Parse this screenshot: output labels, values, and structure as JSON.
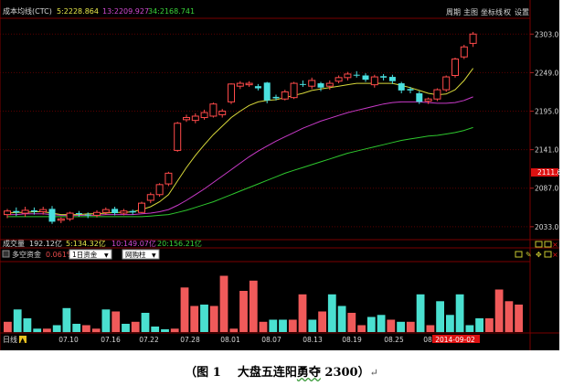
{
  "header": {
    "indicator_name": "成本均线(CTC)",
    "ma1": "5:2228.864",
    "ma2": "13:2209.927",
    "ma3": "34:2168.741",
    "buttons": [
      "周期",
      "主图",
      "坐标线",
      "权",
      "设置"
    ]
  },
  "volume_header": {
    "title": "成交量",
    "total": "192.12亿",
    "ma5": "5:134.32亿",
    "ma10": "10:149.07亿",
    "ma20": "20:156.21亿"
  },
  "flow_header": {
    "title": "多空资金",
    "pct": "0.061%",
    "select1": "1日资金",
    "select2": "网购柱"
  },
  "footer": {
    "period": "日线"
  },
  "caption": {
    "left": "（图 1",
    "main": "大盘五连阳",
    "sq": "勇夺",
    "tail": "2300）",
    "mark": "↵"
  },
  "chart_data": {
    "type": "candlestick",
    "y_ticks": [
      "2303.0",
      "2249.0",
      "2195.0",
      "2141.0",
      "2087.0",
      "2033.0"
    ],
    "ylim": [
      2020,
      2320
    ],
    "current_price": "2111.6",
    "x_ticks": [
      "07.10",
      "07.16",
      "07.22",
      "07.28",
      "08.01",
      "08.07",
      "08.13",
      "08.19",
      "08.25",
      "08",
      "2014-09-02"
    ],
    "candles": [
      [
        2050,
        2055,
        2045,
        2058
      ],
      [
        2055,
        2053,
        2048,
        2060
      ],
      [
        2052,
        2056,
        2047,
        2061
      ],
      [
        2056,
        2054,
        2050,
        2060
      ],
      [
        2054,
        2057,
        2050,
        2061
      ],
      [
        2058,
        2040,
        2037,
        2062
      ],
      [
        2042,
        2044,
        2038,
        2046
      ],
      [
        2044,
        2052,
        2041,
        2054
      ],
      [
        2052,
        2051,
        2047,
        2055
      ],
      [
        2050,
        2049,
        2045,
        2053
      ],
      [
        2049,
        2053,
        2046,
        2056
      ],
      [
        2053,
        2057,
        2050,
        2060
      ],
      [
        2058,
        2052,
        2049,
        2061
      ],
      [
        2052,
        2055,
        2049,
        2058
      ],
      [
        2055,
        2053,
        2050,
        2057
      ],
      [
        2053,
        2066,
        2052,
        2068
      ],
      [
        2070,
        2078,
        2066,
        2081
      ],
      [
        2078,
        2092,
        2075,
        2094
      ],
      [
        2093,
        2108,
        2090,
        2110
      ],
      [
        2140,
        2178,
        2138,
        2180
      ],
      [
        2183,
        2186,
        2180,
        2190
      ],
      [
        2182,
        2188,
        2178,
        2192
      ],
      [
        2186,
        2193,
        2183,
        2197
      ],
      [
        2188,
        2205,
        2186,
        2207
      ],
      [
        2190,
        2195,
        2186,
        2198
      ],
      [
        2208,
        2233,
        2205,
        2234
      ],
      [
        2230,
        2234,
        2226,
        2237
      ],
      [
        2232,
        2234,
        2229,
        2237
      ],
      [
        2230,
        2227,
        2224,
        2233
      ],
      [
        2235,
        2210,
        2206,
        2236
      ],
      [
        2215,
        2213,
        2210,
        2218
      ],
      [
        2212,
        2222,
        2210,
        2225
      ],
      [
        2214,
        2234,
        2212,
        2236
      ],
      [
        2233,
        2232,
        2229,
        2238
      ],
      [
        2230,
        2238,
        2226,
        2242
      ],
      [
        2234,
        2228,
        2223,
        2236
      ],
      [
        2230,
        2234,
        2225,
        2238
      ],
      [
        2237,
        2242,
        2234,
        2245
      ],
      [
        2242,
        2247,
        2238,
        2250
      ],
      [
        2246,
        2245,
        2242,
        2251
      ],
      [
        2245,
        2239,
        2236,
        2248
      ],
      [
        2232,
        2243,
        2228,
        2246
      ],
      [
        2244,
        2242,
        2238,
        2247
      ],
      [
        2243,
        2237,
        2233,
        2246
      ],
      [
        2234,
        2224,
        2220,
        2236
      ],
      [
        2226,
        2224,
        2220,
        2229
      ],
      [
        2220,
        2208,
        2205,
        2223
      ],
      [
        2209,
        2212,
        2205,
        2214
      ],
      [
        2212,
        2225,
        2209,
        2227
      ],
      [
        2225,
        2243,
        2222,
        2245
      ],
      [
        2245,
        2268,
        2242,
        2270
      ],
      [
        2271,
        2285,
        2268,
        2288
      ],
      [
        2290,
        2303,
        2285,
        2306
      ]
    ],
    "ma_ctc5": [
      2052,
      2053,
      2053,
      2054,
      2054,
      2052,
      2050,
      2050,
      2050,
      2051,
      2051,
      2052,
      2053,
      2053,
      2054,
      2057,
      2061,
      2068,
      2078,
      2097,
      2116,
      2133,
      2148,
      2162,
      2174,
      2186,
      2195,
      2203,
      2208,
      2210,
      2211,
      2214,
      2217,
      2220,
      2224,
      2226,
      2228,
      2230,
      2232,
      2234,
      2234,
      2234,
      2234,
      2234,
      2231,
      2228,
      2224,
      2220,
      2218,
      2219,
      2225,
      2238,
      2255
    ],
    "ma_ctc13": [
      2050,
      2050,
      2051,
      2051,
      2051,
      2050,
      2049,
      2049,
      2049,
      2049,
      2049,
      2050,
      2050,
      2050,
      2050,
      2051,
      2052,
      2054,
      2057,
      2063,
      2070,
      2078,
      2086,
      2095,
      2104,
      2113,
      2122,
      2131,
      2139,
      2146,
      2153,
      2159,
      2165,
      2171,
      2176,
      2181,
      2185,
      2189,
      2193,
      2196,
      2199,
      2202,
      2205,
      2207,
      2208,
      2208,
      2208,
      2207,
      2206,
      2206,
      2207,
      2210,
      2215
    ],
    "ma_ctc34": [
      2047,
      2047,
      2047,
      2047,
      2047,
      2047,
      2047,
      2047,
      2047,
      2047,
      2047,
      2047,
      2047,
      2047,
      2047,
      2047,
      2048,
      2049,
      2050,
      2053,
      2056,
      2060,
      2064,
      2068,
      2073,
      2078,
      2083,
      2088,
      2093,
      2098,
      2103,
      2108,
      2112,
      2116,
      2120,
      2124,
      2128,
      2132,
      2136,
      2139,
      2142,
      2145,
      2148,
      2151,
      2154,
      2156,
      2158,
      2160,
      2161,
      2163,
      2165,
      2168,
      2172
    ],
    "flow_bars": [
      [
        "r",
        0.15
      ],
      [
        "c",
        0.33
      ],
      [
        "c",
        0.2
      ],
      [
        "c",
        0.05
      ],
      [
        "r",
        0.05
      ],
      [
        "c",
        0.1
      ],
      [
        "c",
        0.35
      ],
      [
        "c",
        0.12
      ],
      [
        "r",
        0.1
      ],
      [
        "r",
        0.05
      ],
      [
        "c",
        0.33
      ],
      [
        "r",
        0.3
      ],
      [
        "c",
        0.12
      ],
      [
        "r",
        0.15
      ],
      [
        "c",
        0.28
      ],
      [
        "c",
        0.08
      ],
      [
        "c",
        0.04
      ],
      [
        "r",
        0.05
      ],
      [
        "r",
        0.65
      ],
      [
        "r",
        0.38
      ],
      [
        "c",
        0.4
      ],
      [
        "r",
        0.38
      ],
      [
        "r",
        0.82
      ],
      [
        "r",
        0.05
      ],
      [
        "r",
        0.6
      ],
      [
        "r",
        0.75
      ],
      [
        "r",
        0.15
      ],
      [
        "c",
        0.18
      ],
      [
        "c",
        0.18
      ],
      [
        "r",
        0.18
      ],
      [
        "r",
        0.55
      ],
      [
        "c",
        0.18
      ],
      [
        "r",
        0.3
      ],
      [
        "c",
        0.55
      ],
      [
        "c",
        0.38
      ],
      [
        "r",
        0.28
      ],
      [
        "r",
        0.1
      ],
      [
        "c",
        0.22
      ],
      [
        "c",
        0.25
      ],
      [
        "r",
        0.18
      ],
      [
        "c",
        0.15
      ],
      [
        "r",
        0.15
      ],
      [
        "c",
        0.55
      ],
      [
        "r",
        0.1
      ],
      [
        "c",
        0.45
      ],
      [
        "c",
        0.25
      ],
      [
        "c",
        0.55
      ],
      [
        "c",
        0.1
      ],
      [
        "c",
        0.2
      ],
      [
        "r",
        0.2
      ],
      [
        "r",
        0.62
      ],
      [
        "r",
        0.45
      ],
      [
        "r",
        0.4
      ]
    ]
  }
}
